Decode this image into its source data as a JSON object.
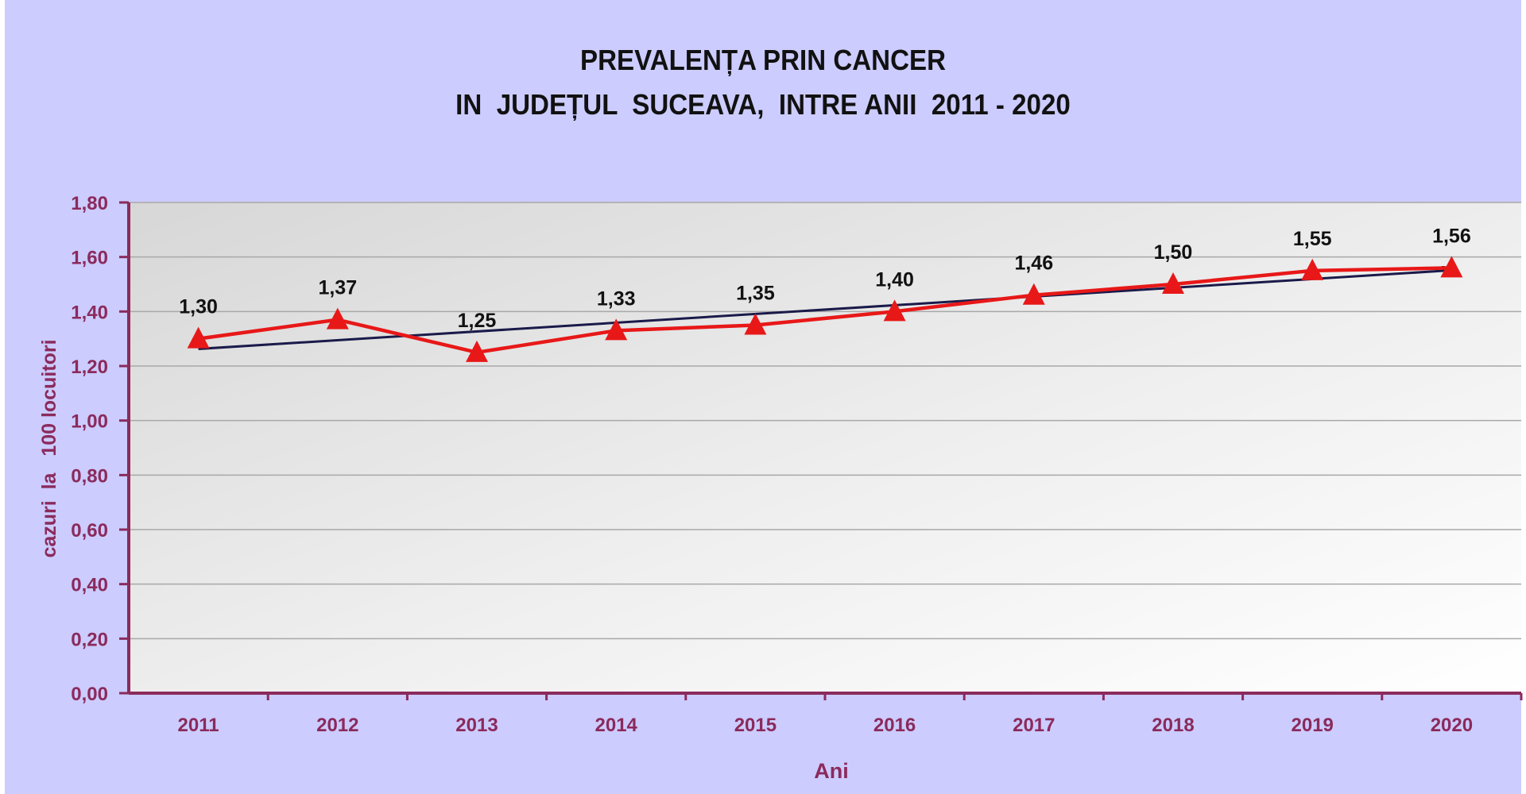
{
  "chart_data": {
    "type": "line",
    "title": [
      "PREVALENȚA PRIN CANCER",
      "IN  JUDEȚUL  SUCEAVA,  INTRE ANII  2011 - 2020"
    ],
    "xlabel": "Ani",
    "ylabel": "cazuri  la   100 locuitori",
    "categories": [
      "2011",
      "2012",
      "2013",
      "2014",
      "2015",
      "2016",
      "2017",
      "2018",
      "2019",
      "2020"
    ],
    "series": [
      {
        "values": [
          1.3,
          1.37,
          1.25,
          1.33,
          1.35,
          1.4,
          1.46,
          1.5,
          1.55,
          1.56
        ],
        "color": "#e81818",
        "marker": "triangle"
      }
    ],
    "data_labels": [
      "1,30",
      "1,37",
      "1,25",
      "1,33",
      "1,35",
      "1,40",
      "1,46",
      "1,50",
      "1,55",
      "1,56"
    ],
    "trendline": {
      "type": "linear",
      "color": "#1a1a4a",
      "arrow": true
    },
    "ylim": [
      0,
      1.8
    ],
    "yticks": [
      "0,00",
      "0,20",
      "0,40",
      "0,60",
      "0,80",
      "1,00",
      "1,20",
      "1,40",
      "1,60",
      "1,80"
    ],
    "grid": true,
    "colors": {
      "background": "#ccccff",
      "axis": "#8b2a5c",
      "tick_label": "#8b2a5c",
      "grid": "#a8a8a8"
    }
  }
}
